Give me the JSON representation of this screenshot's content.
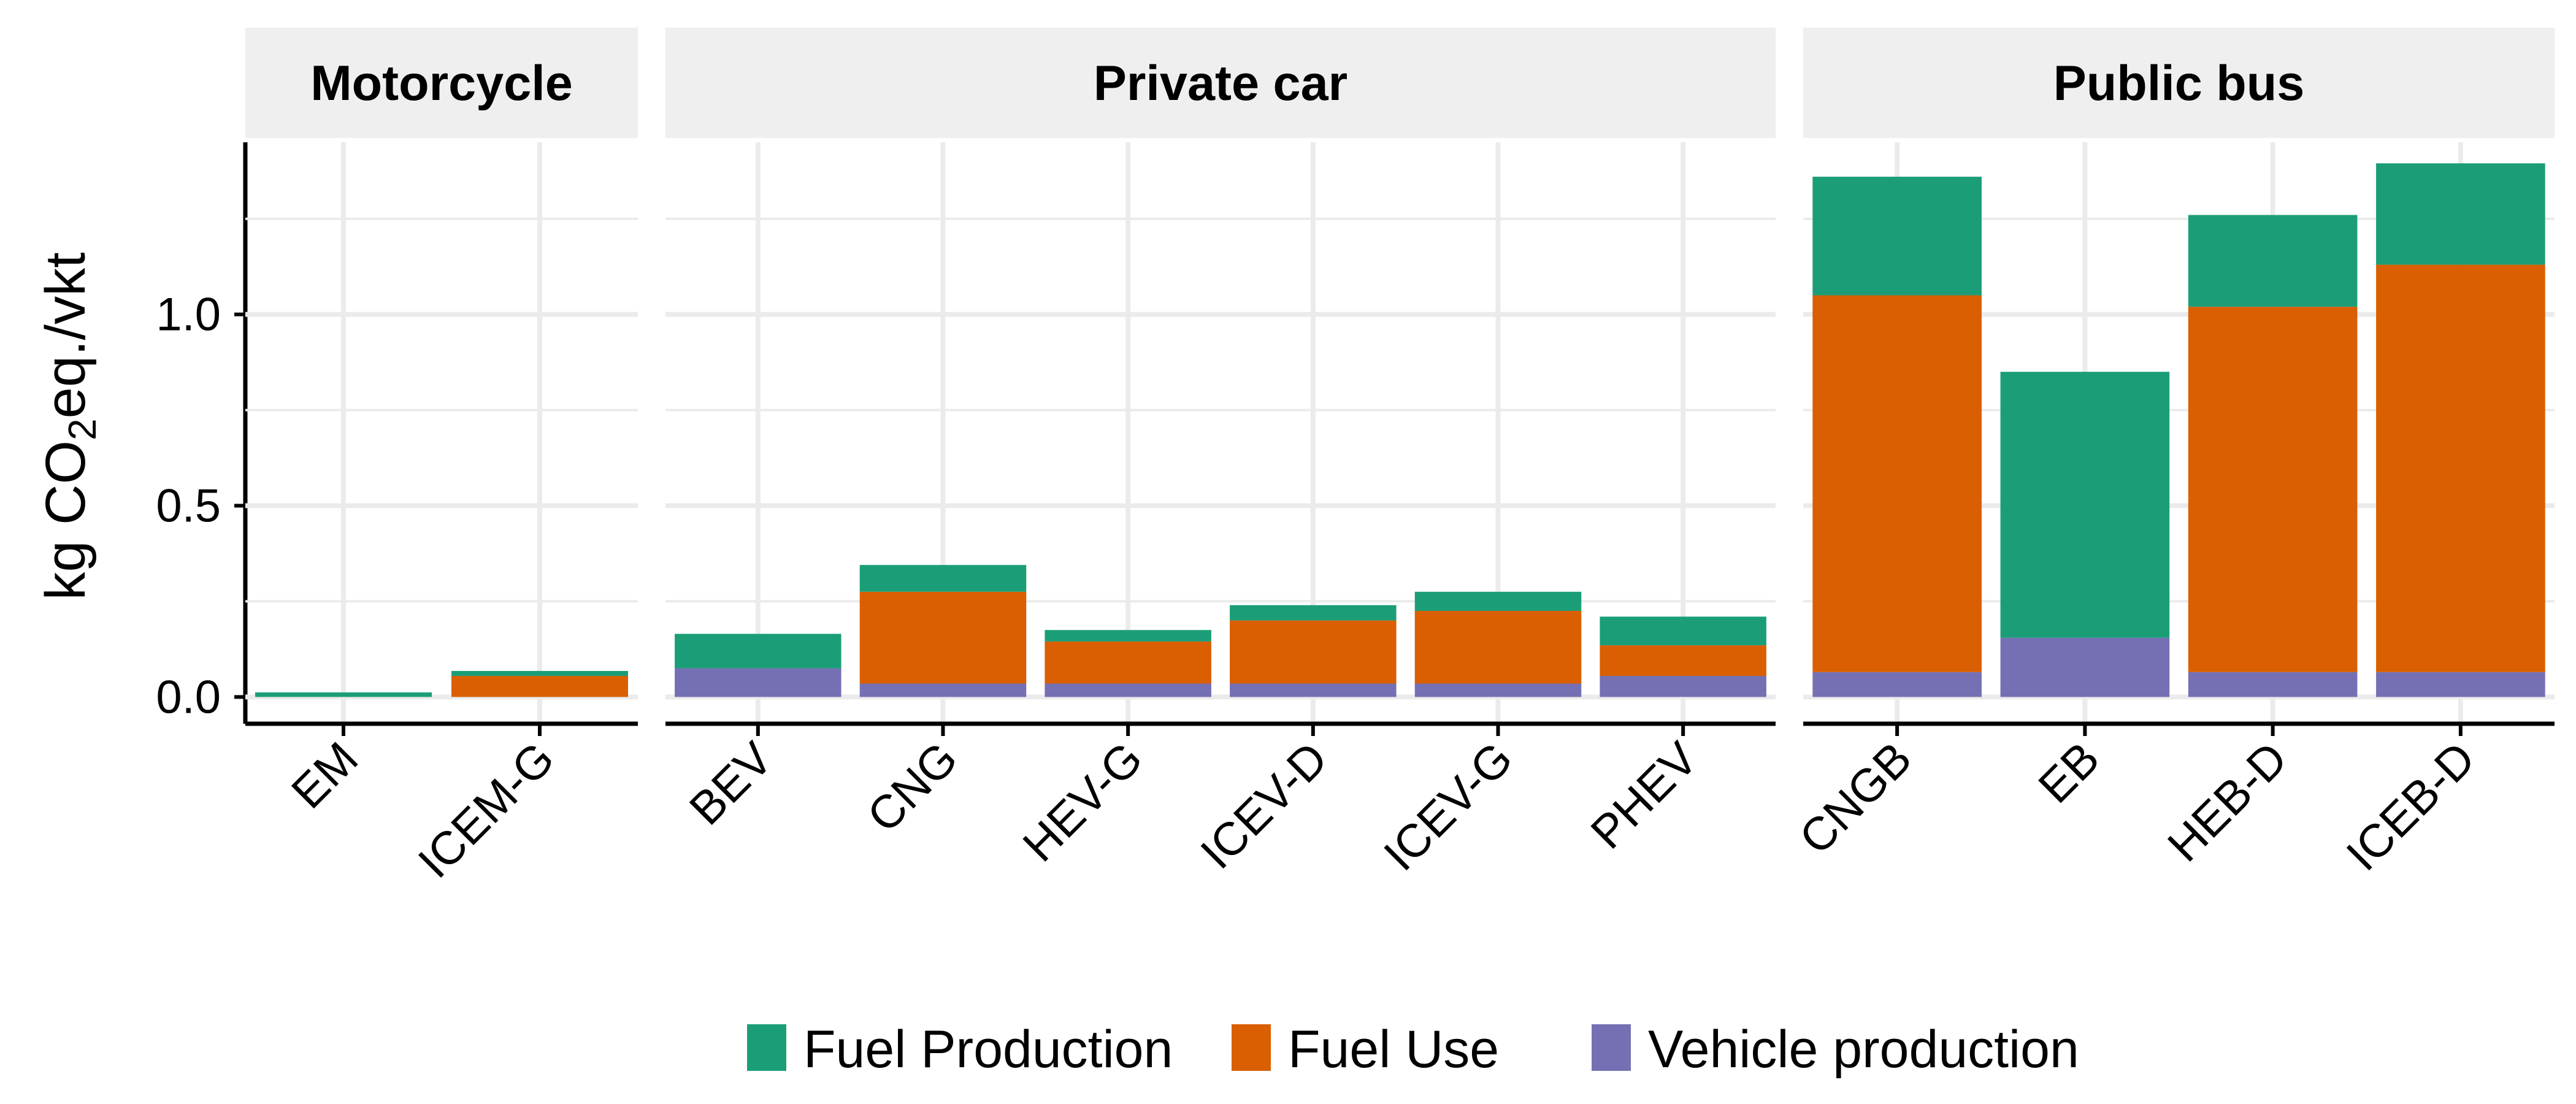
{
  "chart_data": {
    "type": "bar",
    "stacked": true,
    "ylabel": {
      "prefix": "kg CO",
      "subscript": "2",
      "suffix": "eq./vkt"
    },
    "ylim": [
      -0.07,
      1.45
    ],
    "yticks": [
      0.0,
      0.5,
      1.0
    ],
    "ytick_labels": [
      "0.0",
      "0.5",
      "1.0"
    ],
    "grid": true,
    "legend_position": "bottom",
    "series": [
      {
        "name": "Fuel Production",
        "color": "#1b9e77"
      },
      {
        "name": "Fuel Use",
        "color": "#d95f02"
      },
      {
        "name": "Vehicle production",
        "color": "#7570b3"
      }
    ],
    "panels": [
      {
        "title": "Motorcycle",
        "categories": [
          "EM",
          "ICEM-G"
        ],
        "values": {
          "Vehicle production": [
            0.0,
            0.0
          ],
          "Fuel Use": [
            0.0,
            0.055
          ],
          "Fuel Production": [
            0.012,
            0.013
          ]
        }
      },
      {
        "title": "Private car",
        "categories": [
          "BEV",
          "CNG",
          "HEV-G",
          "ICEV-D",
          "ICEV-G",
          "PHEV"
        ],
        "values": {
          "Vehicle production": [
            0.075,
            0.035,
            0.035,
            0.035,
            0.035,
            0.055
          ],
          "Fuel Use": [
            0.0,
            0.24,
            0.11,
            0.165,
            0.19,
            0.08
          ],
          "Fuel Production": [
            0.09,
            0.07,
            0.03,
            0.04,
            0.05,
            0.075
          ]
        }
      },
      {
        "title": "Public bus",
        "categories": [
          "CNGB",
          "EB",
          "HEB-D",
          "ICEB-D"
        ],
        "values": {
          "Vehicle production": [
            0.065,
            0.155,
            0.065,
            0.065
          ],
          "Fuel Use": [
            0.985,
            0.0,
            0.955,
            1.065
          ],
          "Fuel Production": [
            0.31,
            0.695,
            0.24,
            0.265
          ]
        }
      }
    ]
  }
}
